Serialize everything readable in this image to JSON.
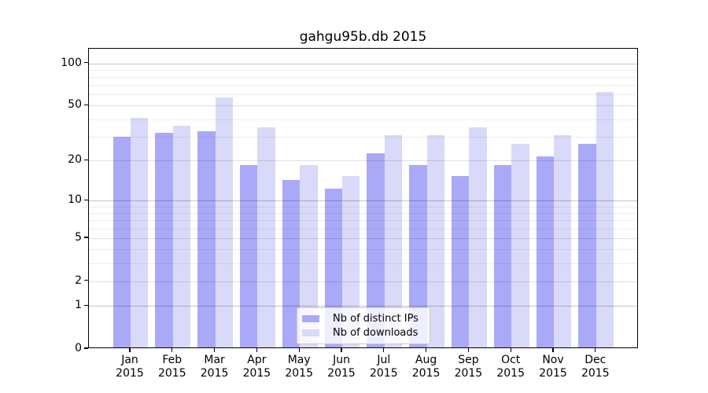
{
  "chart_data": {
    "type": "bar",
    "title": "gahgu95b.db 2015",
    "x_tick_months": [
      "Jan",
      "Feb",
      "Mar",
      "Apr",
      "May",
      "Jun",
      "Jul",
      "Aug",
      "Sep",
      "Oct",
      "Nov",
      "Dec"
    ],
    "x_tick_year": "2015",
    "series": [
      {
        "name": "Nb of distinct IPs",
        "color": "#a9a9f8",
        "values": [
          29,
          31,
          32,
          18,
          14,
          12,
          22,
          18,
          15,
          18,
          21,
          26
        ]
      },
      {
        "name": "Nb of downloads",
        "color": "#d9d9f9",
        "values": [
          40,
          35,
          56,
          34,
          18,
          15,
          30,
          30,
          34,
          26,
          30,
          61
        ]
      }
    ],
    "y_scale": "log1p",
    "y_axis_ticks": [
      0,
      1,
      2,
      5,
      10,
      20,
      50,
      100
    ],
    "y_minor_gridlines": [
      3,
      4,
      6,
      7,
      8,
      9,
      30,
      40,
      60,
      70,
      80,
      90
    ],
    "ylim": [
      0,
      126
    ],
    "grid": true,
    "legend_position": "lower center"
  }
}
